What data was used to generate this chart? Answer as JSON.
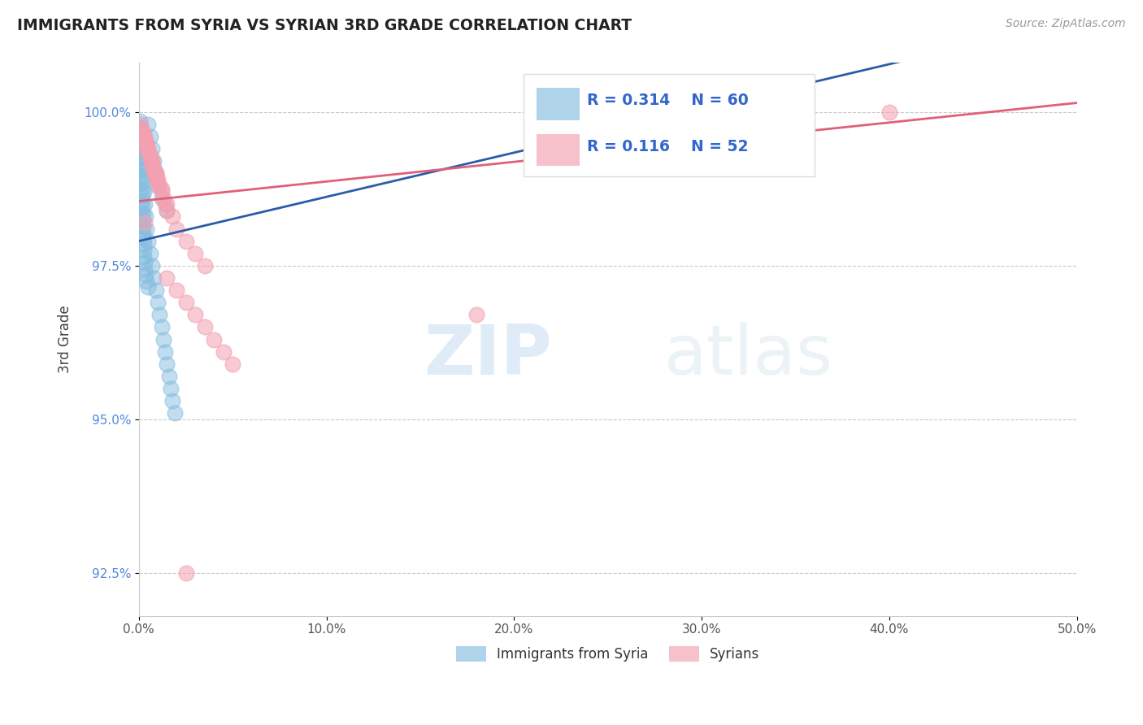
{
  "title": "IMMIGRANTS FROM SYRIA VS SYRIAN 3RD GRADE CORRELATION CHART",
  "source_text": "Source: ZipAtlas.com",
  "ylabel_label": "3rd Grade",
  "legend_label1": "Immigrants from Syria",
  "legend_label2": "Syrians",
  "legend_r1": "R = 0.314",
  "legend_n1": "N = 60",
  "legend_r2": "R = 0.116",
  "legend_n2": "N = 52",
  "watermark_zip": "ZIP",
  "watermark_atlas": "atlas",
  "blue_color": "#85bde0",
  "pink_color": "#f4a0b0",
  "blue_line_color": "#2b5ca8",
  "pink_line_color": "#e0607a",
  "blue_line": [
    [
      0,
      97.9
    ],
    [
      50,
      101.5
    ]
  ],
  "pink_line": [
    [
      0,
      98.55
    ],
    [
      50,
      100.15
    ]
  ],
  "ylim": [
    91.8,
    100.8
  ],
  "xlim": [
    0,
    50
  ],
  "yticks": [
    92.5,
    95.0,
    97.5,
    100.0
  ],
  "xticks": [
    0,
    10,
    20,
    30,
    40,
    50
  ],
  "blue_scatter": [
    [
      0.05,
      99.85
    ],
    [
      0.07,
      99.75
    ],
    [
      0.08,
      99.65
    ],
    [
      0.09,
      99.55
    ],
    [
      0.1,
      99.45
    ],
    [
      0.11,
      99.35
    ],
    [
      0.12,
      99.25
    ],
    [
      0.13,
      99.15
    ],
    [
      0.14,
      99.05
    ],
    [
      0.15,
      98.95
    ],
    [
      0.16,
      98.85
    ],
    [
      0.17,
      98.75
    ],
    [
      0.18,
      98.65
    ],
    [
      0.19,
      98.55
    ],
    [
      0.2,
      98.45
    ],
    [
      0.21,
      98.35
    ],
    [
      0.22,
      98.25
    ],
    [
      0.23,
      98.15
    ],
    [
      0.24,
      98.05
    ],
    [
      0.25,
      97.95
    ],
    [
      0.26,
      97.85
    ],
    [
      0.27,
      97.75
    ],
    [
      0.28,
      97.65
    ],
    [
      0.29,
      97.55
    ],
    [
      0.3,
      97.45
    ],
    [
      0.35,
      97.35
    ],
    [
      0.4,
      97.25
    ],
    [
      0.5,
      97.15
    ],
    [
      0.08,
      99.7
    ],
    [
      0.12,
      99.5
    ],
    [
      0.15,
      99.3
    ],
    [
      0.18,
      99.1
    ],
    [
      0.2,
      98.9
    ],
    [
      0.25,
      98.7
    ],
    [
      0.3,
      98.5
    ],
    [
      0.35,
      98.3
    ],
    [
      0.4,
      98.1
    ],
    [
      0.5,
      97.9
    ],
    [
      0.6,
      97.7
    ],
    [
      0.7,
      97.5
    ],
    [
      0.8,
      97.3
    ],
    [
      0.9,
      97.1
    ],
    [
      1.0,
      96.9
    ],
    [
      1.1,
      96.7
    ],
    [
      1.2,
      96.5
    ],
    [
      1.3,
      96.3
    ],
    [
      1.4,
      96.1
    ],
    [
      1.5,
      95.9
    ],
    [
      1.6,
      95.7
    ],
    [
      1.7,
      95.5
    ],
    [
      1.8,
      95.3
    ],
    [
      1.9,
      95.1
    ],
    [
      0.5,
      99.8
    ],
    [
      0.6,
      99.6
    ],
    [
      0.7,
      99.4
    ],
    [
      0.8,
      99.2
    ],
    [
      0.9,
      99.0
    ],
    [
      1.0,
      98.8
    ],
    [
      1.2,
      98.6
    ],
    [
      1.5,
      98.4
    ]
  ],
  "pink_scatter": [
    [
      0.1,
      99.8
    ],
    [
      0.15,
      99.7
    ],
    [
      0.2,
      99.65
    ],
    [
      0.25,
      99.6
    ],
    [
      0.3,
      99.55
    ],
    [
      0.35,
      99.5
    ],
    [
      0.4,
      99.45
    ],
    [
      0.45,
      99.4
    ],
    [
      0.5,
      99.35
    ],
    [
      0.55,
      99.3
    ],
    [
      0.6,
      99.25
    ],
    [
      0.65,
      99.2
    ],
    [
      0.7,
      99.15
    ],
    [
      0.75,
      99.1
    ],
    [
      0.8,
      99.05
    ],
    [
      0.85,
      99.0
    ],
    [
      0.9,
      98.95
    ],
    [
      0.95,
      98.9
    ],
    [
      1.0,
      98.85
    ],
    [
      1.1,
      98.8
    ],
    [
      1.2,
      98.7
    ],
    [
      1.3,
      98.6
    ],
    [
      1.4,
      98.5
    ],
    [
      1.5,
      98.4
    ],
    [
      0.2,
      99.7
    ],
    [
      0.3,
      99.6
    ],
    [
      0.4,
      99.5
    ],
    [
      0.5,
      99.4
    ],
    [
      0.6,
      99.3
    ],
    [
      0.7,
      99.2
    ],
    [
      0.8,
      99.1
    ],
    [
      0.9,
      99.0
    ],
    [
      1.0,
      98.9
    ],
    [
      1.2,
      98.75
    ],
    [
      1.5,
      98.5
    ],
    [
      1.8,
      98.3
    ],
    [
      2.0,
      98.1
    ],
    [
      2.5,
      97.9
    ],
    [
      3.0,
      97.7
    ],
    [
      3.5,
      97.5
    ],
    [
      1.5,
      97.3
    ],
    [
      2.0,
      97.1
    ],
    [
      2.5,
      96.9
    ],
    [
      3.0,
      96.7
    ],
    [
      3.5,
      96.5
    ],
    [
      4.0,
      96.3
    ],
    [
      4.5,
      96.1
    ],
    [
      5.0,
      95.9
    ],
    [
      2.5,
      92.5
    ],
    [
      0.3,
      98.2
    ],
    [
      40.0,
      100.0
    ],
    [
      18.0,
      96.7
    ]
  ]
}
